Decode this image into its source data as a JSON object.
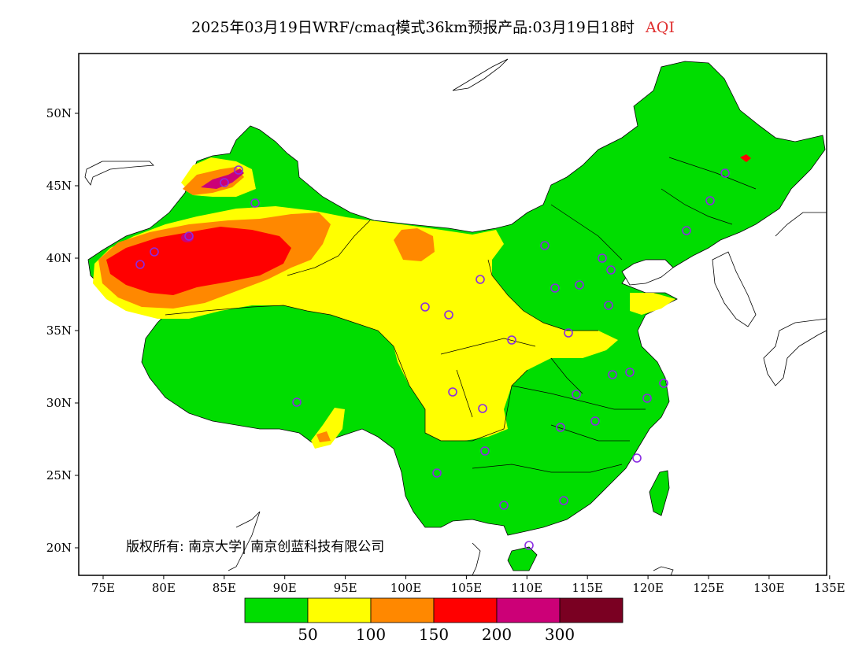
{
  "title": {
    "main": "2025年03月19日WRF/cmaq模式36km预报产品:03月19日18时",
    "variable": "AQI",
    "variable_color": "#e03030"
  },
  "map": {
    "lon_ticks": [
      "75E",
      "80E",
      "85E",
      "90E",
      "95E",
      "100E",
      "105E",
      "110E",
      "115E",
      "120E",
      "125E",
      "130E",
      "135E"
    ],
    "lat_ticks": [
      "50N",
      "45N",
      "40N",
      "35N",
      "30N",
      "25N",
      "20N"
    ],
    "copyright": "版权所有: 南京大学| 南京创蓝科技有限公司"
  },
  "legend": {
    "colors": [
      "#00dd00",
      "#ffff00",
      "#ff8800",
      "#ff0000",
      "#cc0077",
      "#7a0022"
    ],
    "labels": [
      "50",
      "100",
      "150",
      "200",
      "300"
    ],
    "categories": [
      {
        "range": "0-50",
        "color": "#00dd00"
      },
      {
        "range": "50-100",
        "color": "#ffff00"
      },
      {
        "range": "100-150",
        "color": "#ff8800"
      },
      {
        "range": "150-200",
        "color": "#ff0000"
      },
      {
        "range": "200-300",
        "color": "#cc0077"
      },
      {
        "range": ">300",
        "color": "#7a0022"
      }
    ]
  },
  "stations_color": "#8a2be2"
}
